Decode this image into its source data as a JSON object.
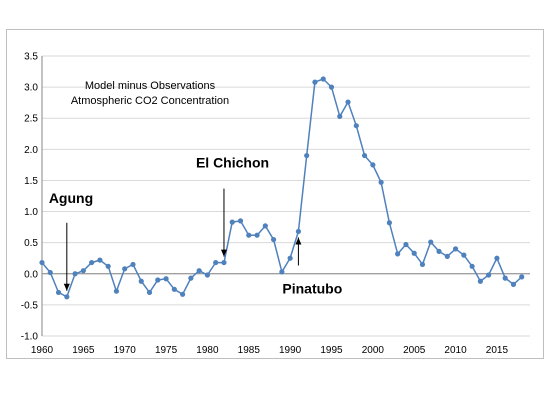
{
  "chart_data": {
    "type": "line",
    "title_lines": [
      "Model minus Observations",
      "Atmospheric CO2 Concentration"
    ],
    "xlabel": "",
    "ylabel": "",
    "xlim": [
      1960,
      2019
    ],
    "ylim": [
      -1.0,
      3.5
    ],
    "x_ticks": [
      1960,
      1965,
      1970,
      1975,
      1980,
      1985,
      1990,
      1995,
      2000,
      2005,
      2010,
      2015
    ],
    "y_ticks": [
      -1.0,
      -0.5,
      0.0,
      0.5,
      1.0,
      1.5,
      2.0,
      2.5,
      3.0,
      3.5
    ],
    "grid": "horizontal",
    "legend": "none",
    "series_color": "#4f81bd",
    "series": [
      {
        "x": [
          1960,
          1961,
          1962,
          1963,
          1964,
          1965,
          1966,
          1967,
          1968,
          1969,
          1970,
          1971,
          1972,
          1973,
          1974,
          1975,
          1976,
          1977,
          1978,
          1979,
          1980,
          1981,
          1982,
          1983,
          1984,
          1985,
          1986,
          1987,
          1988,
          1989,
          1990,
          1991,
          1992,
          1993,
          1994,
          1995,
          1996,
          1997,
          1998,
          1999,
          2000,
          2001,
          2002,
          2003,
          2004,
          2005,
          2006,
          2007,
          2008,
          2009,
          2010,
          2011,
          2012,
          2013,
          2014,
          2015,
          2016,
          2017,
          2018
        ],
        "values": [
          0.18,
          0.02,
          -0.3,
          -0.37,
          0.0,
          0.05,
          0.18,
          0.22,
          0.12,
          -0.28,
          0.08,
          0.15,
          -0.12,
          -0.3,
          -0.1,
          -0.08,
          -0.25,
          -0.33,
          -0.07,
          0.05,
          -0.02,
          0.18,
          0.18,
          0.83,
          0.85,
          0.62,
          0.62,
          0.77,
          0.55,
          0.03,
          0.25,
          0.68,
          1.9,
          3.08,
          3.13,
          3.0,
          2.53,
          2.76,
          2.38,
          1.9,
          1.75,
          1.47,
          0.82,
          0.32,
          0.47,
          0.33,
          0.15,
          0.51,
          0.36,
          0.28,
          0.4,
          0.3,
          0.12,
          -0.12,
          -0.02,
          0.25,
          -0.07,
          -0.17,
          -0.05
        ]
      }
    ],
    "annotations": [
      {
        "label": "Agung",
        "x": 1963,
        "y": -0.37
      },
      {
        "label": "El Chichon",
        "x": 1982,
        "y": 0.18
      },
      {
        "label": "Pinatubo",
        "x": 1991,
        "y": 0.68
      }
    ]
  }
}
